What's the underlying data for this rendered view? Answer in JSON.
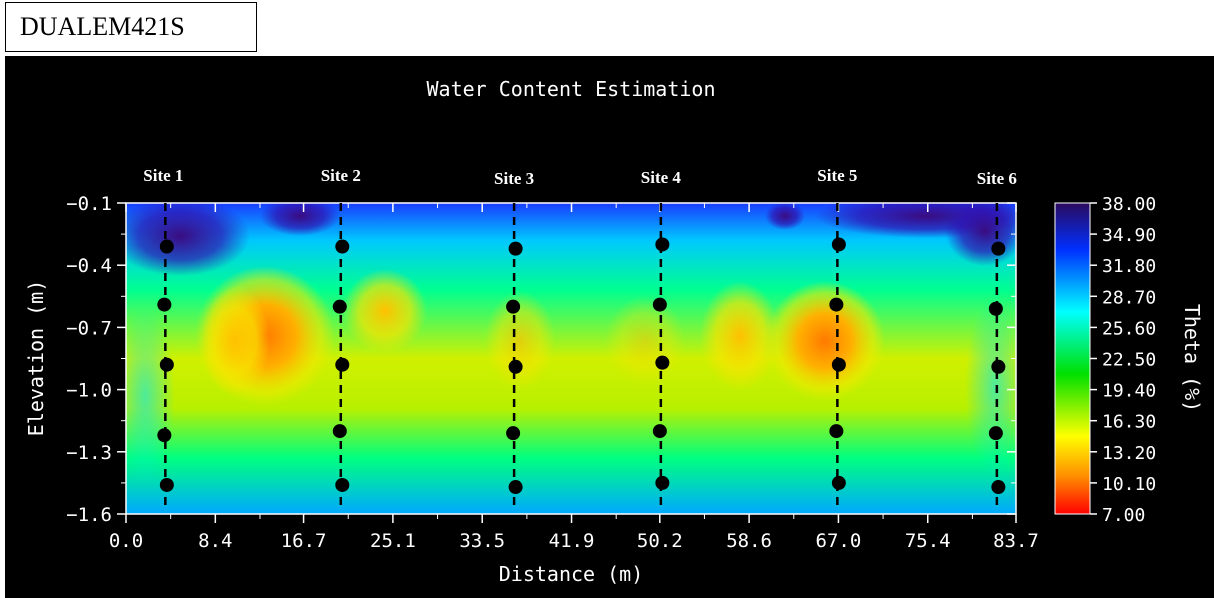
{
  "label": "DUALEM421S",
  "chart_data": {
    "type": "heatmap",
    "title": "Water Content Estimation",
    "xlabel": "Distance (m)",
    "ylabel": "Elevation (m)",
    "colorbar_label": "Theta (%)",
    "xlim": [
      0.0,
      83.7
    ],
    "ylim": [
      -1.6,
      -0.1
    ],
    "x_ticks": [
      "0.0",
      "8.4",
      "16.7",
      "25.1",
      "33.5",
      "41.9",
      "50.2",
      "58.6",
      "67.0",
      "75.4",
      "83.7"
    ],
    "y_ticks": [
      "-0.1",
      "-0.4",
      "-0.7",
      "-1.0",
      "-1.3",
      "-1.6"
    ],
    "colorbar_range": [
      7.0,
      38.0
    ],
    "colorbar_ticks": [
      "38.00",
      "34.90",
      "31.80",
      "28.70",
      "25.60",
      "22.50",
      "19.40",
      "16.30",
      "13.20",
      "10.10",
      "7.00"
    ],
    "colormap": [
      "#ff0000",
      "#ff8c00",
      "#ffff00",
      "#00e000",
      "#00ffff",
      "#0030ff",
      "#2a0a5e"
    ],
    "sites": [
      {
        "name": "Site 1",
        "x": 3.7,
        "points": [
          -0.31,
          -0.59,
          -0.88,
          -1.22,
          -1.46
        ]
      },
      {
        "name": "Site 2",
        "x": 20.2,
        "points": [
          -0.31,
          -0.6,
          -0.88,
          -1.2,
          -1.46
        ]
      },
      {
        "name": "Site 3",
        "x": 36.5,
        "points": [
          -0.32,
          -0.6,
          -0.89,
          -1.21,
          -1.47
        ]
      },
      {
        "name": "Site 4",
        "x": 50.3,
        "points": [
          -0.3,
          -0.59,
          -0.87,
          -1.2,
          -1.45
        ]
      },
      {
        "name": "Site 5",
        "x": 66.9,
        "points": [
          -0.3,
          -0.59,
          -0.88,
          -1.2,
          -1.45
        ]
      },
      {
        "name": "Site 6",
        "x": 81.9,
        "points": [
          -0.32,
          -0.61,
          -0.89,
          -1.21,
          -1.47
        ]
      }
    ]
  }
}
